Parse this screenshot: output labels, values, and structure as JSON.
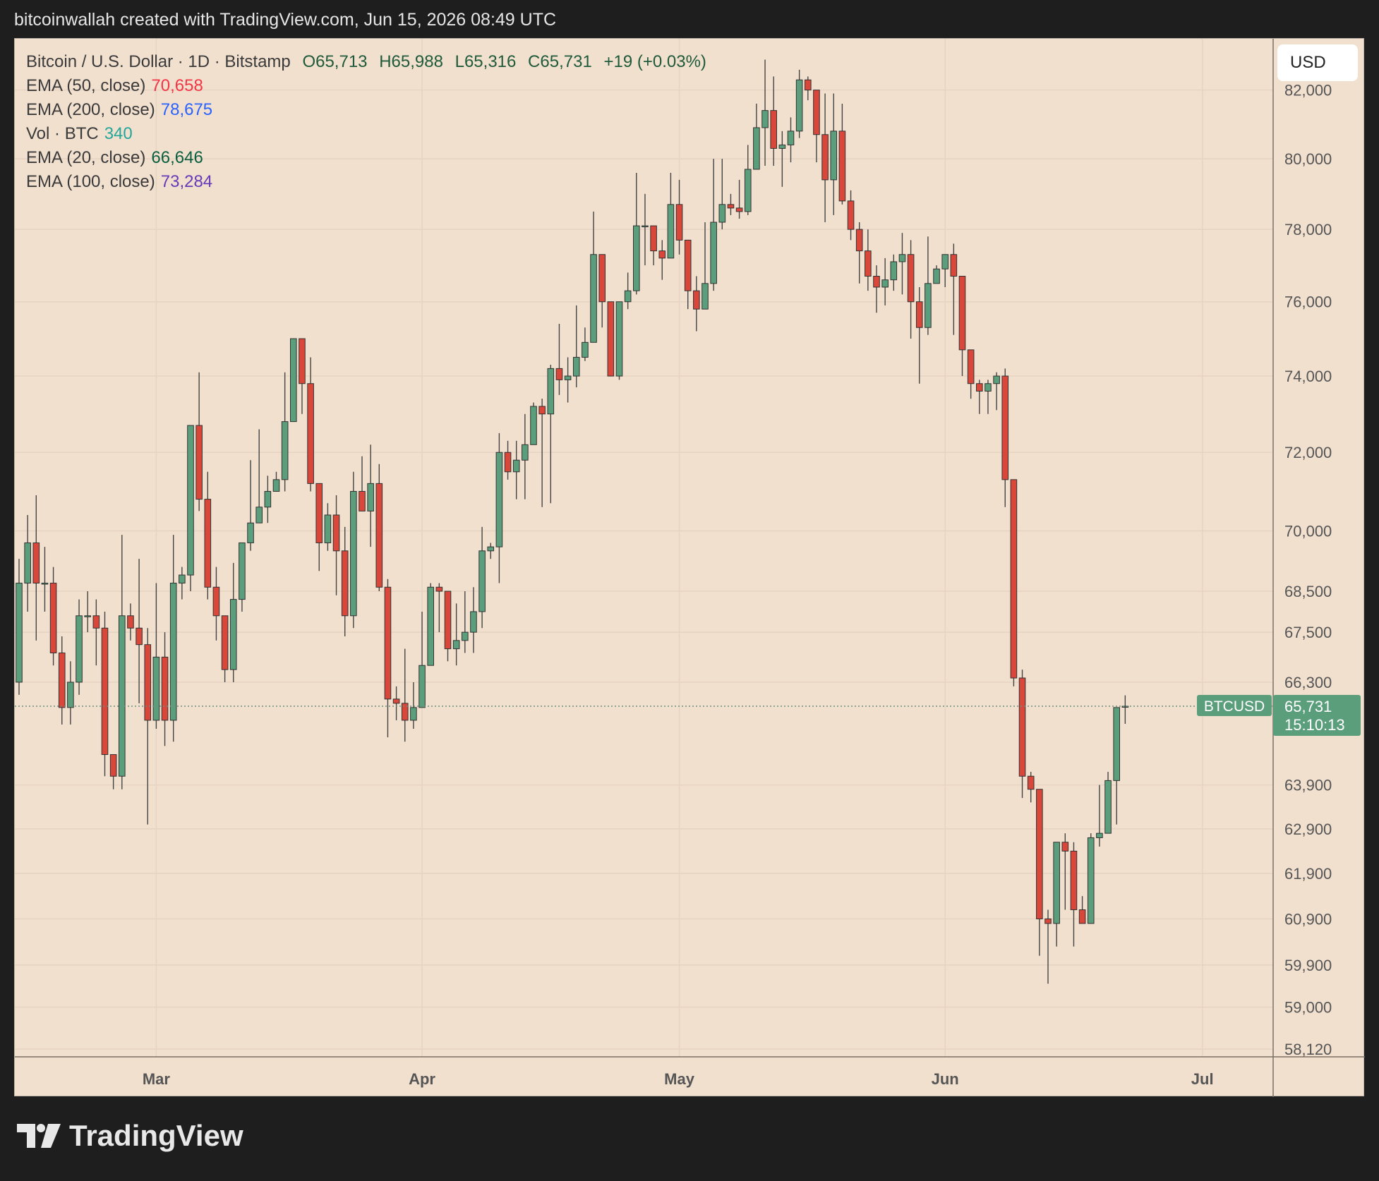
{
  "header": {
    "caption": "bitcoinwallah created with TradingView.com, Jun 15, 2026 08:49 UTC"
  },
  "legend": {
    "symbol": "Bitcoin / U.S. Dollar · 1D · Bitstamp",
    "open": "O65,713",
    "high": "H65,988",
    "low": "L65,316",
    "close": "C65,731",
    "change": "+19 (+0.03%)",
    "indicators": [
      {
        "label": "EMA (50, close)",
        "value": "70,658",
        "color": "#f23645"
      },
      {
        "label": "EMA (200, close)",
        "value": "78,675",
        "color": "#2962ff"
      },
      {
        "label": "Vol · BTC",
        "value": "340",
        "color": "#26a69a"
      },
      {
        "label": "EMA (20, close)",
        "value": "66,646",
        "color": "#0b5f3f"
      },
      {
        "label": "EMA (100, close)",
        "value": "73,284",
        "color": "#673ab7"
      }
    ]
  },
  "currency": "USD",
  "price_tag": {
    "symbol": "BTCUSD",
    "price": "65,731",
    "countdown": "15:10:13"
  },
  "footer": {
    "brand": "TradingView"
  },
  "colors": {
    "up": "#5a9e7c",
    "down": "#d9463a",
    "background": "#f2e0cf",
    "tag": "#5a9e7c"
  },
  "chart_data": {
    "type": "candlestick",
    "yscale": "log",
    "ylim": [
      58120,
      83100
    ],
    "yticks": [
      82000,
      80000,
      78000,
      76000,
      74000,
      72000,
      70000,
      68500,
      67500,
      66300,
      63900,
      62900,
      61900,
      60900,
      59900,
      59000,
      58120
    ],
    "ytick_labels": [
      "82,000",
      "80,000",
      "78,000",
      "76,000",
      "74,000",
      "72,000",
      "70,000",
      "68,500",
      "67,500",
      "66,300",
      "63,900",
      "62,900",
      "61,900",
      "60,900",
      "59,900",
      "59,000",
      "58,120"
    ],
    "xticks": [
      {
        "label": "Mar",
        "index": 16
      },
      {
        "label": "Apr",
        "index": 47
      },
      {
        "label": "May",
        "index": 77
      },
      {
        "label": "Jun",
        "index": 108
      },
      {
        "label": "Jul",
        "index": 138
      }
    ],
    "last_price": 65731,
    "candles": [
      [
        66300,
        68700,
        69300,
        66000
      ],
      [
        68700,
        69700,
        70400,
        68000
      ],
      [
        69700,
        68700,
        70900,
        67300
      ],
      [
        68700,
        68700,
        69600,
        68000
      ],
      [
        68700,
        67000,
        69100,
        66700
      ],
      [
        67000,
        65700,
        67400,
        65300
      ],
      [
        65700,
        66300,
        66800,
        65300
      ],
      [
        66300,
        67900,
        68300,
        66000
      ],
      [
        67900,
        67900,
        68500,
        67500
      ],
      [
        67900,
        67600,
        68300,
        66700
      ],
      [
        67600,
        64600,
        68000,
        64100
      ],
      [
        64600,
        64100,
        64600,
        63800
      ],
      [
        64100,
        67900,
        69900,
        63800
      ],
      [
        67900,
        67600,
        68200,
        67300
      ],
      [
        67600,
        67200,
        69300,
        65800
      ],
      [
        67200,
        65400,
        67600,
        63000
      ],
      [
        65400,
        66900,
        68700,
        65200
      ],
      [
        66900,
        65400,
        67500,
        64800
      ],
      [
        65400,
        68700,
        69900,
        64900
      ],
      [
        68700,
        68900,
        69100,
        68300
      ],
      [
        68900,
        72700,
        72700,
        68500
      ],
      [
        72700,
        70800,
        74100,
        70500
      ],
      [
        70800,
        68600,
        71500,
        68300
      ],
      [
        68600,
        67900,
        69100,
        67300
      ],
      [
        67900,
        66600,
        67900,
        66300
      ],
      [
        66600,
        68300,
        69200,
        66300
      ],
      [
        68300,
        69700,
        69700,
        68000
      ],
      [
        69700,
        70200,
        71800,
        69500
      ],
      [
        70200,
        70600,
        72600,
        70200
      ],
      [
        70600,
        71000,
        71400,
        70200
      ],
      [
        71000,
        71300,
        71500,
        71000
      ],
      [
        71300,
        72800,
        74100,
        71000
      ],
      [
        72800,
        75000,
        75000,
        72800
      ],
      [
        75000,
        73800,
        75000,
        73000
      ],
      [
        73800,
        71200,
        74500,
        71000
      ],
      [
        71200,
        69700,
        71200,
        69000
      ],
      [
        69700,
        70400,
        70700,
        69500
      ],
      [
        70400,
        69500,
        70900,
        68400
      ],
      [
        69500,
        67900,
        70100,
        67400
      ],
      [
        67900,
        71000,
        71500,
        67600
      ],
      [
        71000,
        70500,
        71900,
        70500
      ],
      [
        70500,
        71200,
        72200,
        69600
      ],
      [
        71200,
        68600,
        71700,
        68500
      ],
      [
        68600,
        65900,
        68800,
        65000
      ],
      [
        65900,
        65800,
        66200,
        65400
      ],
      [
        65800,
        65400,
        67100,
        64900
      ],
      [
        65400,
        65700,
        66300,
        65200
      ],
      [
        65700,
        66700,
        68000,
        65700
      ],
      [
        66700,
        68600,
        68700,
        66700
      ],
      [
        68600,
        68500,
        68700,
        67500
      ],
      [
        68500,
        67100,
        68300,
        66800
      ],
      [
        67100,
        67300,
        68200,
        66700
      ],
      [
        67300,
        67500,
        68500,
        67000
      ],
      [
        67500,
        68000,
        68600,
        67000
      ],
      [
        68000,
        69500,
        70100,
        67600
      ],
      [
        69500,
        69600,
        69700,
        69300
      ],
      [
        69600,
        72000,
        72500,
        68700
      ],
      [
        72000,
        71500,
        72300,
        71300
      ],
      [
        71500,
        71800,
        72300,
        70800
      ],
      [
        71800,
        72200,
        73000,
        70800
      ],
      [
        72200,
        73200,
        73300,
        72700
      ],
      [
        73200,
        73000,
        73400,
        70600
      ],
      [
        73000,
        74200,
        74300,
        70700
      ],
      [
        74200,
        73900,
        75400,
        73500
      ],
      [
        73900,
        74000,
        74500,
        73300
      ],
      [
        74000,
        74500,
        75900,
        73700
      ],
      [
        74500,
        74900,
        75300,
        74400
      ],
      [
        74900,
        77300,
        78500,
        75400
      ],
      [
        77300,
        76000,
        76800,
        75300
      ],
      [
        76000,
        74000,
        74500,
        74000
      ],
      [
        74000,
        76000,
        76000,
        73900
      ],
      [
        76000,
        76300,
        76800,
        75800
      ],
      [
        76300,
        78100,
        79600,
        76200
      ],
      [
        78100,
        78100,
        79000,
        77000
      ],
      [
        78100,
        77400,
        78100,
        77000
      ],
      [
        77400,
        77200,
        77700,
        76600
      ],
      [
        77200,
        78700,
        79600,
        78200
      ],
      [
        78700,
        77700,
        79400,
        77300
      ],
      [
        77700,
        76300,
        77700,
        75800
      ],
      [
        76300,
        75800,
        76700,
        75200
      ],
      [
        75800,
        76500,
        78200,
        75800
      ],
      [
        76500,
        78200,
        80000,
        76300
      ],
      [
        78200,
        78700,
        80000,
        78000
      ],
      [
        78700,
        78600,
        79000,
        78400
      ],
      [
        78600,
        78500,
        79400,
        78300
      ],
      [
        78500,
        79700,
        80400,
        78400
      ],
      [
        79700,
        80900,
        81600,
        79800
      ],
      [
        80900,
        81400,
        82900,
        79800
      ],
      [
        81400,
        80300,
        82400,
        79800
      ],
      [
        80300,
        80400,
        80800,
        79200
      ],
      [
        80400,
        80800,
        81200,
        79900
      ],
      [
        80800,
        82300,
        82600,
        80600
      ],
      [
        82300,
        82000,
        82400,
        81700
      ],
      [
        82000,
        80700,
        81800,
        79900
      ],
      [
        80700,
        79400,
        81900,
        78200
      ],
      [
        79400,
        80800,
        81900,
        78400
      ],
      [
        80800,
        78800,
        81600,
        78700
      ],
      [
        78800,
        78000,
        79100,
        77700
      ],
      [
        78000,
        77400,
        78200,
        76500
      ],
      [
        77400,
        76700,
        78000,
        76300
      ],
      [
        76700,
        76400,
        77000,
        75700
      ],
      [
        76400,
        76600,
        77200,
        75900
      ],
      [
        76600,
        77100,
        77300,
        76300
      ],
      [
        77100,
        77300,
        77900,
        76200
      ],
      [
        77300,
        76000,
        77700,
        75000
      ],
      [
        76000,
        75300,
        76400,
        73800
      ],
      [
        75300,
        76500,
        77800,
        75100
      ],
      [
        76500,
        76900,
        77000,
        76600
      ],
      [
        76900,
        77300,
        77300,
        76400
      ],
      [
        77300,
        76700,
        77600,
        75100
      ],
      [
        76700,
        74700,
        74800,
        74000
      ],
      [
        74700,
        73800,
        74300,
        73400
      ],
      [
        73800,
        73600,
        73900,
        73000
      ],
      [
        73600,
        73800,
        73900,
        73000
      ],
      [
        73800,
        74000,
        74100,
        73100
      ],
      [
        74000,
        71300,
        74200,
        70600
      ],
      [
        71300,
        66400,
        71300,
        66200
      ],
      [
        66400,
        64100,
        66600,
        63600
      ],
      [
        64100,
        63800,
        64200,
        63500
      ],
      [
        63800,
        60900,
        63800,
        60100
      ],
      [
        60900,
        60800,
        61100,
        59500
      ],
      [
        60800,
        62600,
        62600,
        60300
      ],
      [
        62600,
        62400,
        62800,
        61100
      ],
      [
        62400,
        61100,
        62600,
        60300
      ],
      [
        61100,
        60800,
        61400,
        60800
      ],
      [
        60800,
        62700,
        62800,
        60800
      ],
      [
        62700,
        62800,
        63900,
        62500
      ],
      [
        62800,
        64000,
        64200,
        62800
      ],
      [
        64000,
        65700,
        65700,
        63000
      ],
      [
        65713,
        65731,
        65988,
        65316
      ]
    ]
  }
}
